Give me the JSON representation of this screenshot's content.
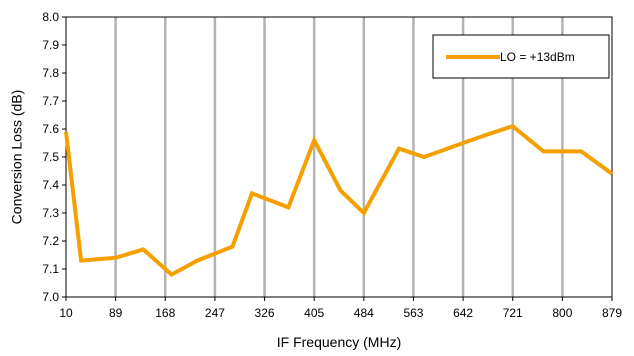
{
  "chart_data": {
    "type": "line",
    "title": "",
    "xlabel": "IF Frequency (MHz)",
    "ylabel": "Conversion Loss (dB)",
    "x_tick_labels": [
      "10",
      "89",
      "168",
      "247",
      "326",
      "405",
      "484",
      "563",
      "642",
      "721",
      "800",
      "879"
    ],
    "xlim": [
      10,
      879
    ],
    "ylim": [
      7.0,
      8.0
    ],
    "y_tick_labels": [
      "7.0",
      "7.1",
      "7.2",
      "7.3",
      "7.4",
      "7.5",
      "7.6",
      "7.7",
      "7.8",
      "7.9",
      "8.0"
    ],
    "grid": "vertical",
    "legend_position": "top-right",
    "series": [
      {
        "name": "LO = +13dBm",
        "color": "#F5A000",
        "x": [
          10,
          34,
          89,
          133,
          178,
          219,
          275,
          306,
          364,
          405,
          447,
          484,
          540,
          580,
          642,
          680,
          721,
          770,
          830,
          879
        ],
        "y": [
          7.59,
          7.13,
          7.14,
          7.17,
          7.08,
          7.13,
          7.18,
          7.37,
          7.32,
          7.56,
          7.38,
          7.3,
          7.53,
          7.5,
          7.55,
          7.58,
          7.61,
          7.52,
          7.52,
          7.44
        ]
      }
    ]
  }
}
